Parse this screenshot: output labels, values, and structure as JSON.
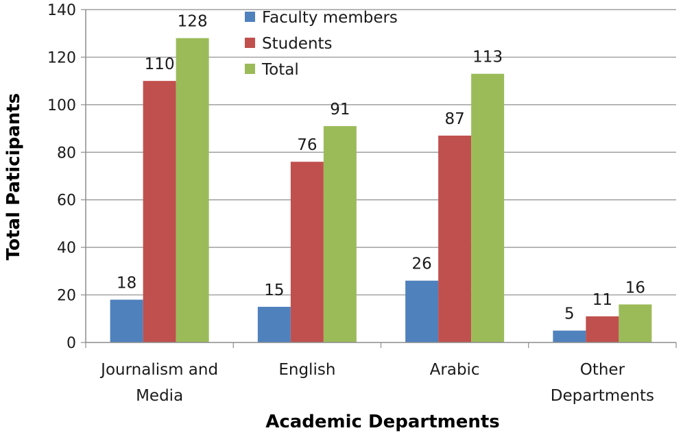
{
  "chart_data": {
    "type": "bar",
    "title": "",
    "xlabel": "Academic Departments",
    "ylabel": "Total Paticipants",
    "ylim": [
      0,
      140
    ],
    "yticks": [
      0,
      20,
      40,
      60,
      80,
      100,
      120,
      140
    ],
    "grid": true,
    "legend_position": "top-center",
    "categories": [
      [
        "Journalism and",
        "Media"
      ],
      [
        "English"
      ],
      [
        "Arabic"
      ],
      [
        "Other",
        "Departments"
      ]
    ],
    "series": [
      {
        "name": "Faculty members",
        "color": "#4f81bd",
        "values": [
          18,
          15,
          26,
          5
        ]
      },
      {
        "name": "Students",
        "color": "#c0504d",
        "values": [
          110,
          76,
          87,
          11
        ]
      },
      {
        "name": "Total",
        "color": "#9bbb59",
        "values": [
          128,
          91,
          113,
          16
        ]
      }
    ]
  }
}
